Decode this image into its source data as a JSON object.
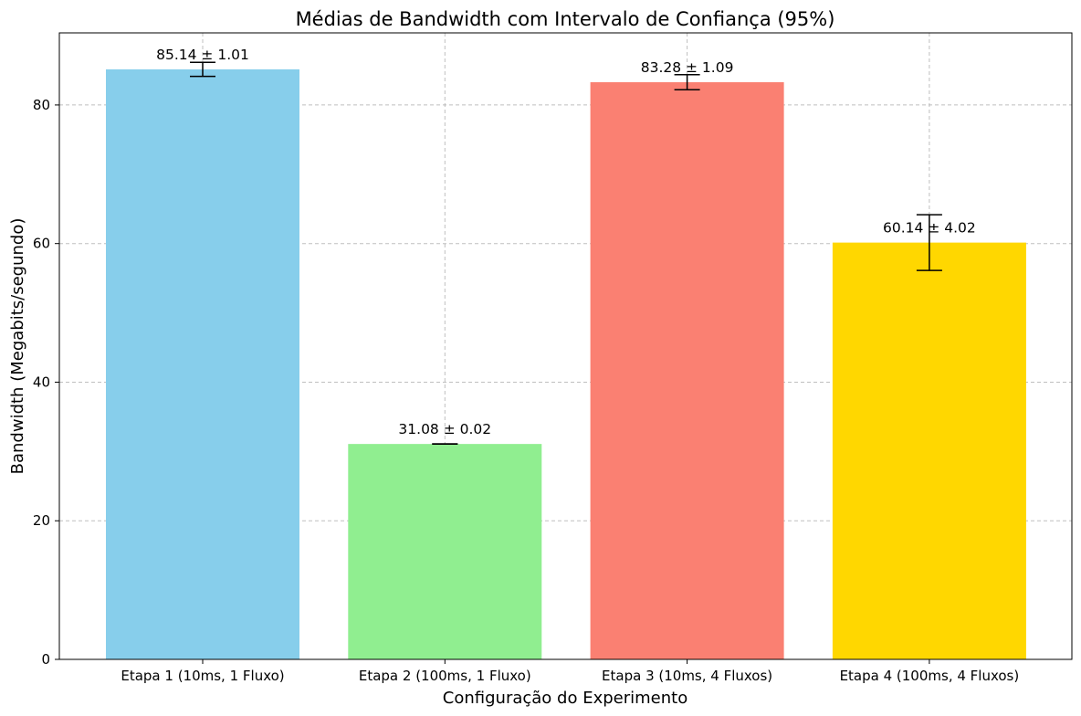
{
  "chart_data": {
    "type": "bar",
    "title": "Médias de Bandwidth com Intervalo de Confiança (95%)",
    "xlabel": "Configuração do Experimento",
    "ylabel": "Bandwidth (Megabits/segundo)",
    "categories": [
      "Etapa 1 (10ms, 1 Fluxo)",
      "Etapa 2 (100ms, 1 Fluxo)",
      "Etapa 3 (10ms, 4 Fluxos)",
      "Etapa 4 (100ms, 4 Fluxos)"
    ],
    "values": [
      85.14,
      31.08,
      83.28,
      60.14
    ],
    "errors": [
      1.01,
      0.02,
      1.09,
      4.02
    ],
    "data_labels": [
      "85.14 ± 1.01",
      "31.08 ± 0.02",
      "83.28 ± 1.09",
      "60.14 ± 4.02"
    ],
    "colors": [
      "#87ceeb",
      "#90ee90",
      "#fa8072",
      "#ffd700"
    ],
    "ylim": [
      0,
      90.4
    ],
    "yticks": [
      0,
      20,
      40,
      60,
      80
    ],
    "grid": true
  }
}
